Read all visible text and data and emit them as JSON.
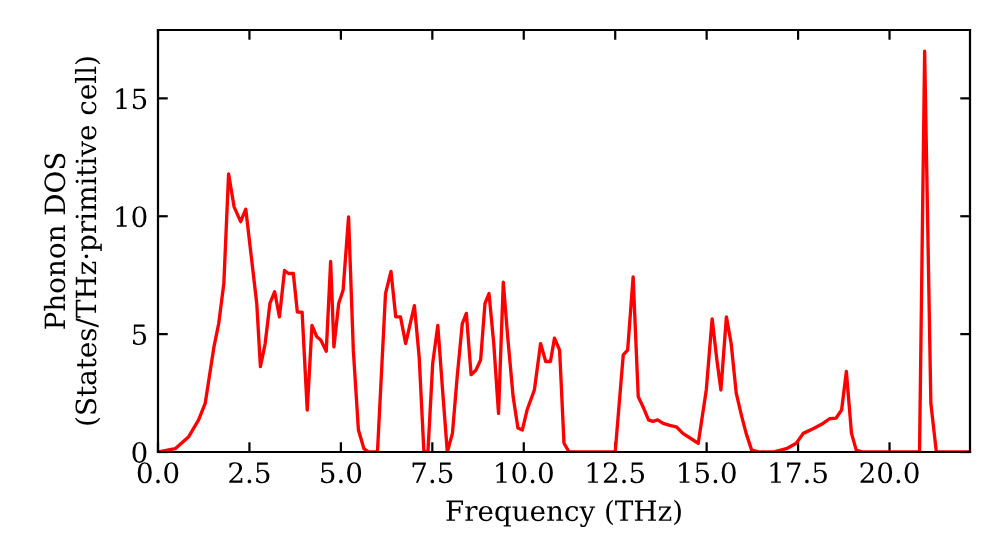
{
  "chart_data": {
    "type": "line",
    "xlabel": "Frequency (THz)",
    "ylabel": "Phonon DOS\n(States/THz·primitive cell)",
    "x": [
      0,
      0.47,
      0.84,
      1.11,
      1.29,
      1.53,
      1.66,
      1.8,
      1.93,
      2.08,
      2.26,
      2.4,
      2.53,
      2.7,
      2.8,
      2.93,
      3.06,
      3.19,
      3.32,
      3.46,
      3.57,
      3.7,
      3.81,
      3.94,
      4.08,
      4.21,
      4.34,
      4.45,
      4.6,
      4.72,
      4.81,
      4.94,
      5.06,
      5.21,
      5.34,
      5.48,
      5.63,
      5.76,
      6.0,
      6.22,
      6.37,
      6.5,
      6.63,
      6.77,
      7.01,
      7.14,
      7.27,
      7.38,
      7.51,
      7.65,
      7.78,
      7.91,
      8.05,
      8.18,
      8.32,
      8.43,
      8.56,
      8.69,
      8.82,
      8.94,
      9.05,
      9.18,
      9.31,
      9.44,
      9.56,
      9.71,
      9.84,
      9.96,
      10.09,
      10.29,
      10.46,
      10.6,
      10.73,
      10.84,
      10.98,
      11.1,
      11.24,
      12.5,
      12.72,
      12.84,
      12.99,
      13.13,
      13.26,
      13.41,
      13.53,
      13.66,
      13.81,
      13.99,
      14.17,
      14.35,
      14.63,
      14.77,
      14.99,
      15.15,
      15.28,
      15.39,
      15.54,
      15.67,
      15.81,
      15.96,
      16.08,
      16.23,
      16.45,
      16.81,
      17.18,
      17.45,
      17.64,
      17.91,
      18.18,
      18.36,
      18.54,
      18.69,
      18.82,
      18.96,
      19.09,
      19.27,
      20.82,
      20.96,
      21.13,
      21.28,
      22.18
    ],
    "series": [
      {
        "color": "#ff0000",
        "values": [
          0,
          0.14,
          0.65,
          1.36,
          2.06,
          4.46,
          5.45,
          7.15,
          11.8,
          10.4,
          9.77,
          10.3,
          8.56,
          6.3,
          3.62,
          4.6,
          6.3,
          6.8,
          5.73,
          7.7,
          7.57,
          7.57,
          5.93,
          5.93,
          1.78,
          5.37,
          4.89,
          4.75,
          4.27,
          8.08,
          4.46,
          6.3,
          6.86,
          9.97,
          4.32,
          0.93,
          0.14,
          0,
          0,
          6.72,
          7.66,
          5.73,
          5.73,
          4.6,
          6.21,
          4.04,
          0,
          0,
          3.76,
          5.37,
          2.63,
          0,
          0.79,
          3.2,
          5.45,
          5.88,
          3.28,
          3.47,
          3.9,
          6.3,
          6.72,
          4.6,
          1.64,
          7.2,
          4.89,
          2.34,
          1.02,
          0.93,
          1.78,
          2.63,
          4.6,
          3.84,
          3.84,
          4.83,
          4.32,
          0.37,
          0,
          0,
          4.12,
          4.32,
          7.43,
          2.34,
          1.92,
          1.36,
          1.3,
          1.36,
          1.21,
          1.13,
          1.07,
          0.79,
          0.51,
          0.37,
          2.63,
          5.65,
          3.9,
          2.63,
          5.73,
          4.6,
          2.49,
          1.5,
          0.79,
          0.08,
          0,
          0,
          0.14,
          0.37,
          0.79,
          0.99,
          1.21,
          1.41,
          1.44,
          1.78,
          3.42,
          0.79,
          0.08,
          0,
          0,
          17.0,
          2.06,
          0,
          0
        ]
      }
    ],
    "xlim": [
      0,
      22.2
    ],
    "ylim": [
      0,
      17.9
    ],
    "xticks": [
      {
        "value": 0,
        "label": "0.0"
      },
      2.5,
      {
        "value": 5,
        "label": "5.0"
      },
      7.5,
      {
        "value": 10,
        "label": "10.0"
      },
      12.5,
      {
        "value": 15,
        "label": "15.0"
      },
      17.5,
      {
        "value": 20,
        "label": "20.0"
      }
    ],
    "yticks": [
      0,
      5,
      10,
      15
    ],
    "marker": "none",
    "line_style": "solid",
    "grid": false,
    "legend": false
  }
}
